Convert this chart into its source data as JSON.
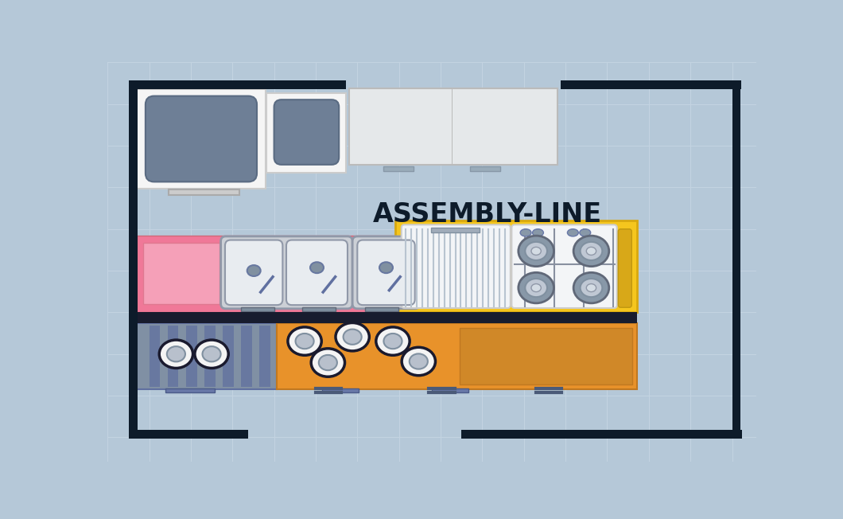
{
  "bg_color": "#b5c8d8",
  "tile_line_color": "#c4d4e2",
  "wall_color": "#0d1b2a",
  "title": "ASSEMBLY-LINE",
  "title_fontsize": 24,
  "pink_color": "#f07898",
  "pink_light": "#f5a0b8",
  "yellow_color": "#f5c61e",
  "yellow_dark": "#e8b818",
  "orange_color": "#e8922a",
  "orange_dark": "#d07820",
  "gray_color": "#8898a8",
  "gray_dark": "#6878a0",
  "white_panel": "#f2f4f6",
  "sink_gray": "#d0d4d8",
  "sink_basin": "#e4e8ec",
  "drain_color": "#8090a0",
  "burner_outer": "#9098a8",
  "burner_inner": "#c0c8d4",
  "burner_center": "#d8e0e8",
  "grate_color": "#8090a0",
  "knob_top": "#6878a8",
  "dark_sep": "#181c2e"
}
